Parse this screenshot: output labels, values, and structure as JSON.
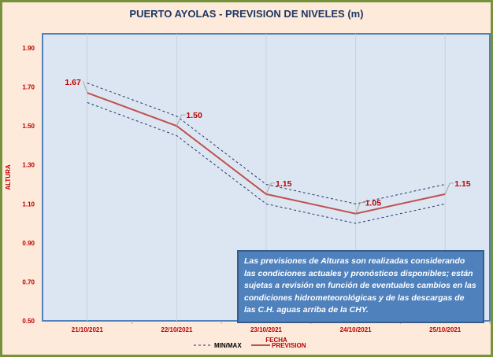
{
  "chart_data": {
    "type": "line",
    "title": "PUERTO AYOLAS - PREVISION  DE NIVELES  (m)",
    "xlabel": "FECHA",
    "ylabel": "ALTURA",
    "categories": [
      "21/10/2021",
      "22/10/2021",
      "23/10/2021",
      "24/10/2021",
      "25/10/2021"
    ],
    "yticks": [
      "0.50",
      "0.70",
      "0.90",
      "1.10",
      "1.30",
      "1.50",
      "1.70",
      "1.90"
    ],
    "ylim": [
      0.5,
      1.97
    ],
    "grid": "vertical",
    "series": [
      {
        "name": "PREVISION",
        "values": [
          1.67,
          1.5,
          1.15,
          1.05,
          1.15
        ],
        "labels": [
          "1.67",
          "1.50",
          "1.15",
          "1.05",
          "1.15"
        ],
        "color": "#c0504d"
      },
      {
        "name": "MAX",
        "values": [
          1.72,
          1.55,
          1.2,
          1.1,
          1.2
        ],
        "color": "#1f3864"
      },
      {
        "name": "MIN",
        "values": [
          1.62,
          1.45,
          1.1,
          1.0,
          1.1
        ],
        "color": "#1f3864"
      }
    ],
    "legend": {
      "placement": "bottom",
      "entries": [
        "MIN/MAX",
        "PREVISION"
      ]
    }
  },
  "note": "Las previsiones de Alturas son realizadas considerando las condiciones actuales y pronósticos disponibles;  están sujetas a revisión en función de eventuales cambios en las condiciones hidrometeorológicas y de las descargas de las C.H. aguas arriba de la CHY."
}
